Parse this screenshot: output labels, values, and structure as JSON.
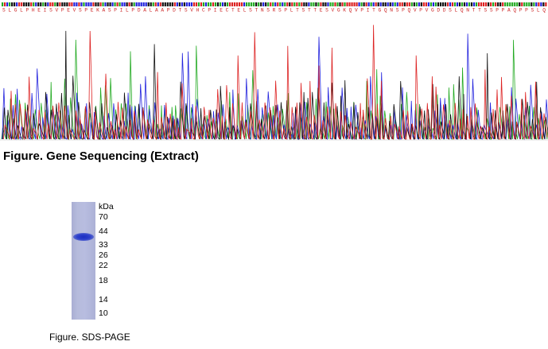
{
  "sequencing": {
    "title": "Figure. Gene Sequencing (Extract)",
    "amino_acid_sequence": "S L G L P H E I S V P E V S P E K A S P I L P D A L A A P D T S V H C P I E C T E L S T N S R S P L T S T T E S V G K Q V P I T G Q N S P Q V P V G D D S L Q N T T S S P P A Q P P S L Q",
    "base_colors": {
      "A": "#22aa22",
      "C": "#2222dd",
      "G": "#111111",
      "T": "#dd2222"
    }
  },
  "gel": {
    "unit_label": "kDa",
    "markers": [
      "70",
      "44",
      "33",
      "26",
      "22",
      "18",
      "14",
      "10"
    ],
    "caption": "Figure. SDS-PAGE"
  }
}
